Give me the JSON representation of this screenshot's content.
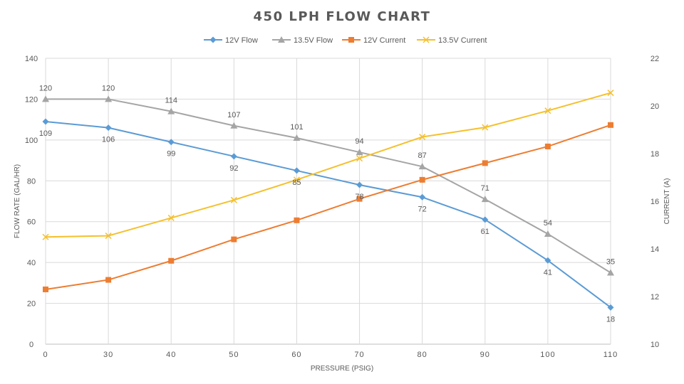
{
  "chart_data": {
    "type": "line",
    "title": "450 LPH FLOW CHART",
    "xlabel": "PRESSURE (PSIG)",
    "ylabel": "FLOW RATE (GAL/HR)",
    "y2label": "CURRENT (A)",
    "categories": [
      "0",
      "30",
      "40",
      "50",
      "60",
      "70",
      "80",
      "90",
      "100",
      "110"
    ],
    "ylim": [
      0,
      140
    ],
    "yticks": [
      "0",
      "20",
      "40",
      "60",
      "80",
      "100",
      "120",
      "140"
    ],
    "y2lim": [
      10,
      22
    ],
    "y2ticks": [
      "10",
      "12",
      "14",
      "16",
      "18",
      "20",
      "22"
    ],
    "grid": true,
    "legend_position": "top",
    "series": [
      {
        "name": "12V Flow",
        "axis": "left",
        "color": "#5b9bd5",
        "marker": "diamond",
        "labels": true,
        "label_position": "below",
        "values": [
          109,
          106,
          99,
          92,
          85,
          78,
          72,
          61,
          41,
          18
        ],
        "data_labels": [
          "109",
          "106",
          "99",
          "92",
          "85",
          "78",
          "72",
          "61",
          "41",
          "18"
        ]
      },
      {
        "name": "13.5V Flow",
        "axis": "left",
        "color": "#a5a5a5",
        "marker": "triangle",
        "labels": true,
        "label_position": "above",
        "values": [
          120,
          120,
          114,
          107,
          101,
          94,
          87,
          71,
          54,
          35
        ],
        "data_labels": [
          "120",
          "120",
          "114",
          "107",
          "101",
          "94",
          "87",
          "71",
          "54",
          "35"
        ]
      },
      {
        "name": "12V Current",
        "axis": "right",
        "color": "#ed7d31",
        "marker": "square",
        "labels": false,
        "values": [
          12.3,
          12.7,
          13.5,
          14.4,
          15.2,
          16.1,
          16.9,
          17.6,
          18.3,
          19.2
        ]
      },
      {
        "name": "13.5V Current",
        "axis": "right",
        "color": "#f5c02d",
        "marker": "x",
        "labels": false,
        "values": [
          14.5,
          14.55,
          15.3,
          16.05,
          16.9,
          17.8,
          18.7,
          19.1,
          19.8,
          20.55
        ]
      }
    ]
  }
}
